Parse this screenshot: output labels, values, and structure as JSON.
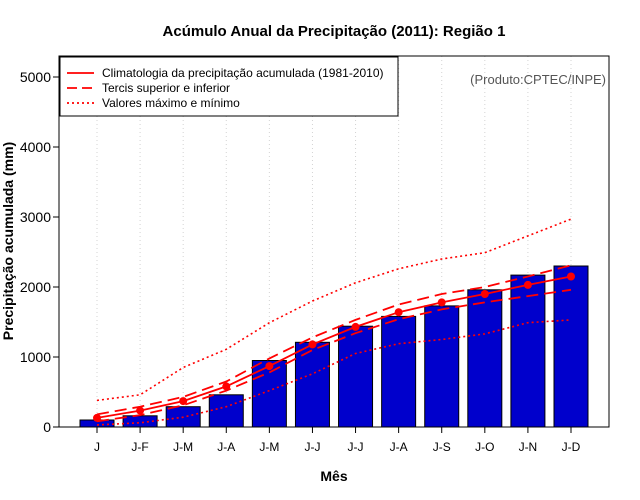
{
  "chart_data": {
    "type": "bar",
    "title": "Acúmulo Anual da Precipitação (2011): Região 1",
    "xlabel": "Mês",
    "ylabel": "Precipitação acumulada (mm)",
    "ylim": [
      0,
      5300
    ],
    "yticks": [
      0,
      1000,
      2000,
      3000,
      4000,
      5000
    ],
    "grid": true,
    "categories": [
      "J",
      "J-F",
      "J-M",
      "J-A",
      "J-M",
      "J-J",
      "J-J",
      "J-A",
      "J-S",
      "J-O",
      "J-N",
      "J-D"
    ],
    "bars": {
      "name": "Precipitação acumulada 2011",
      "color": "#0000cc",
      "values": [
        100,
        160,
        290,
        460,
        950,
        1210,
        1440,
        1580,
        1730,
        1960,
        2170,
        2300
      ]
    },
    "series": [
      {
        "name": "Climatologia da precipitação acumulada (1981-2010)",
        "style": "solid",
        "color": "#ff0000",
        "markers": true,
        "values": [
          130,
          235,
          370,
          580,
          870,
          1180,
          1430,
          1640,
          1780,
          1900,
          2030,
          2150
        ]
      },
      {
        "name": "Tercil superior",
        "style": "dashed",
        "color": "#ff0000",
        "markers": false,
        "values": [
          180,
          290,
          430,
          650,
          980,
          1280,
          1530,
          1750,
          1900,
          2000,
          2150,
          2310
        ]
      },
      {
        "name": "Tercil inferior",
        "style": "dashed",
        "color": "#ff0000",
        "markers": false,
        "values": [
          80,
          170,
          310,
          520,
          780,
          1100,
          1340,
          1540,
          1680,
          1780,
          1870,
          1960
        ]
      },
      {
        "name": "Valor máximo",
        "style": "dotted",
        "color": "#ff0000",
        "markers": false,
        "values": [
          380,
          460,
          850,
          1110,
          1490,
          1800,
          2060,
          2260,
          2400,
          2490,
          2730,
          2970
        ]
      },
      {
        "name": "Valor mínimo",
        "style": "dotted",
        "color": "#ff0000",
        "markers": false,
        "values": [
          30,
          60,
          140,
          290,
          520,
          760,
          1050,
          1190,
          1250,
          1330,
          1490,
          1530
        ]
      }
    ],
    "legend": {
      "position": "top-left",
      "entries": [
        {
          "label": "Climatologia da precipitação acumulada (1981-2010)",
          "style": "solid",
          "color": "#ff0000"
        },
        {
          "label": "Tercis superior e inferior",
          "style": "dashed",
          "color": "#ff0000"
        },
        {
          "label": "Valores máximo e mínimo",
          "style": "dotted",
          "color": "#ff0000"
        }
      ]
    },
    "annotation": "(Produto:CPTEC/INPE)"
  }
}
